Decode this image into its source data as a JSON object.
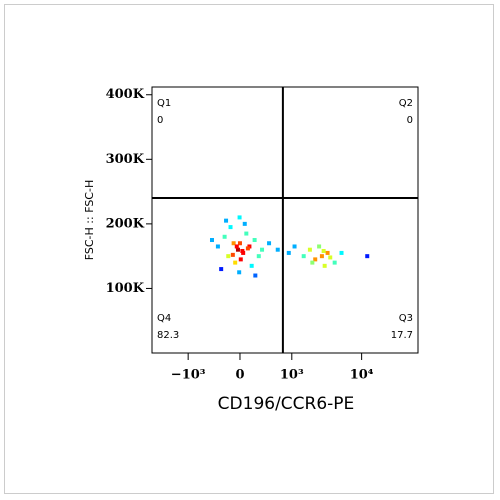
{
  "chart_data": {
    "type": "scatter",
    "xlabel": "CD196/CCR6-PE",
    "ylabel": "FSC-H :: FSC-H",
    "xscale": "biex",
    "colormap": "jet",
    "xlim": [
      -3340,
      62400
    ],
    "ylim": [
      0,
      412000
    ],
    "xticks": [
      {
        "value": -1000,
        "label": "−10³"
      },
      0,
      {
        "value": 1000,
        "label": "10³"
      },
      {
        "value": 10000,
        "label": "10⁴"
      }
    ],
    "yticks": [
      {
        "value": 100000,
        "label": "100K"
      },
      {
        "value": 200000,
        "label": "200K"
      },
      {
        "value": 300000,
        "label": "300K"
      },
      {
        "value": 400000,
        "label": "400K"
      }
    ],
    "gates": {
      "x": 728,
      "y": 240000
    },
    "quadrants": [
      {
        "name": "Q1",
        "value": 0
      },
      {
        "name": "Q2",
        "value": 0
      },
      {
        "name": "Q3",
        "value": 17.7
      },
      {
        "name": "Q4",
        "value": 82.3
      }
    ],
    "points": {
      "x": [
        -25,
        -80,
        40,
        120,
        -150,
        190,
        -200,
        10,
        -60,
        80,
        250,
        -300,
        300,
        -120,
        150,
        -10,
        -250,
        60,
        -400,
        420,
        0,
        -40,
        30,
        -90,
        100,
        -5,
        200,
        -180,
        600,
        900,
        1100,
        2740,
        2200,
        3300,
        1845,
        4160,
        2500,
        3000,
        1500,
        5200,
        3600,
        2000,
        2900,
        12000
      ],
      "y": [
        160000,
        170000,
        155000,
        165000,
        150000,
        175000,
        180000,
        145000,
        140000,
        185000,
        150000,
        165000,
        160000,
        195000,
        135000,
        125000,
        130000,
        200000,
        175000,
        170000,
        170000,
        165000,
        158000,
        152000,
        162000,
        210000,
        120000,
        205000,
        160000,
        155000,
        165000,
        150000,
        145000,
        155000,
        160000,
        140000,
        165000,
        135000,
        150000,
        155000,
        148000,
        140000,
        158000,
        150000
      ]
    }
  }
}
